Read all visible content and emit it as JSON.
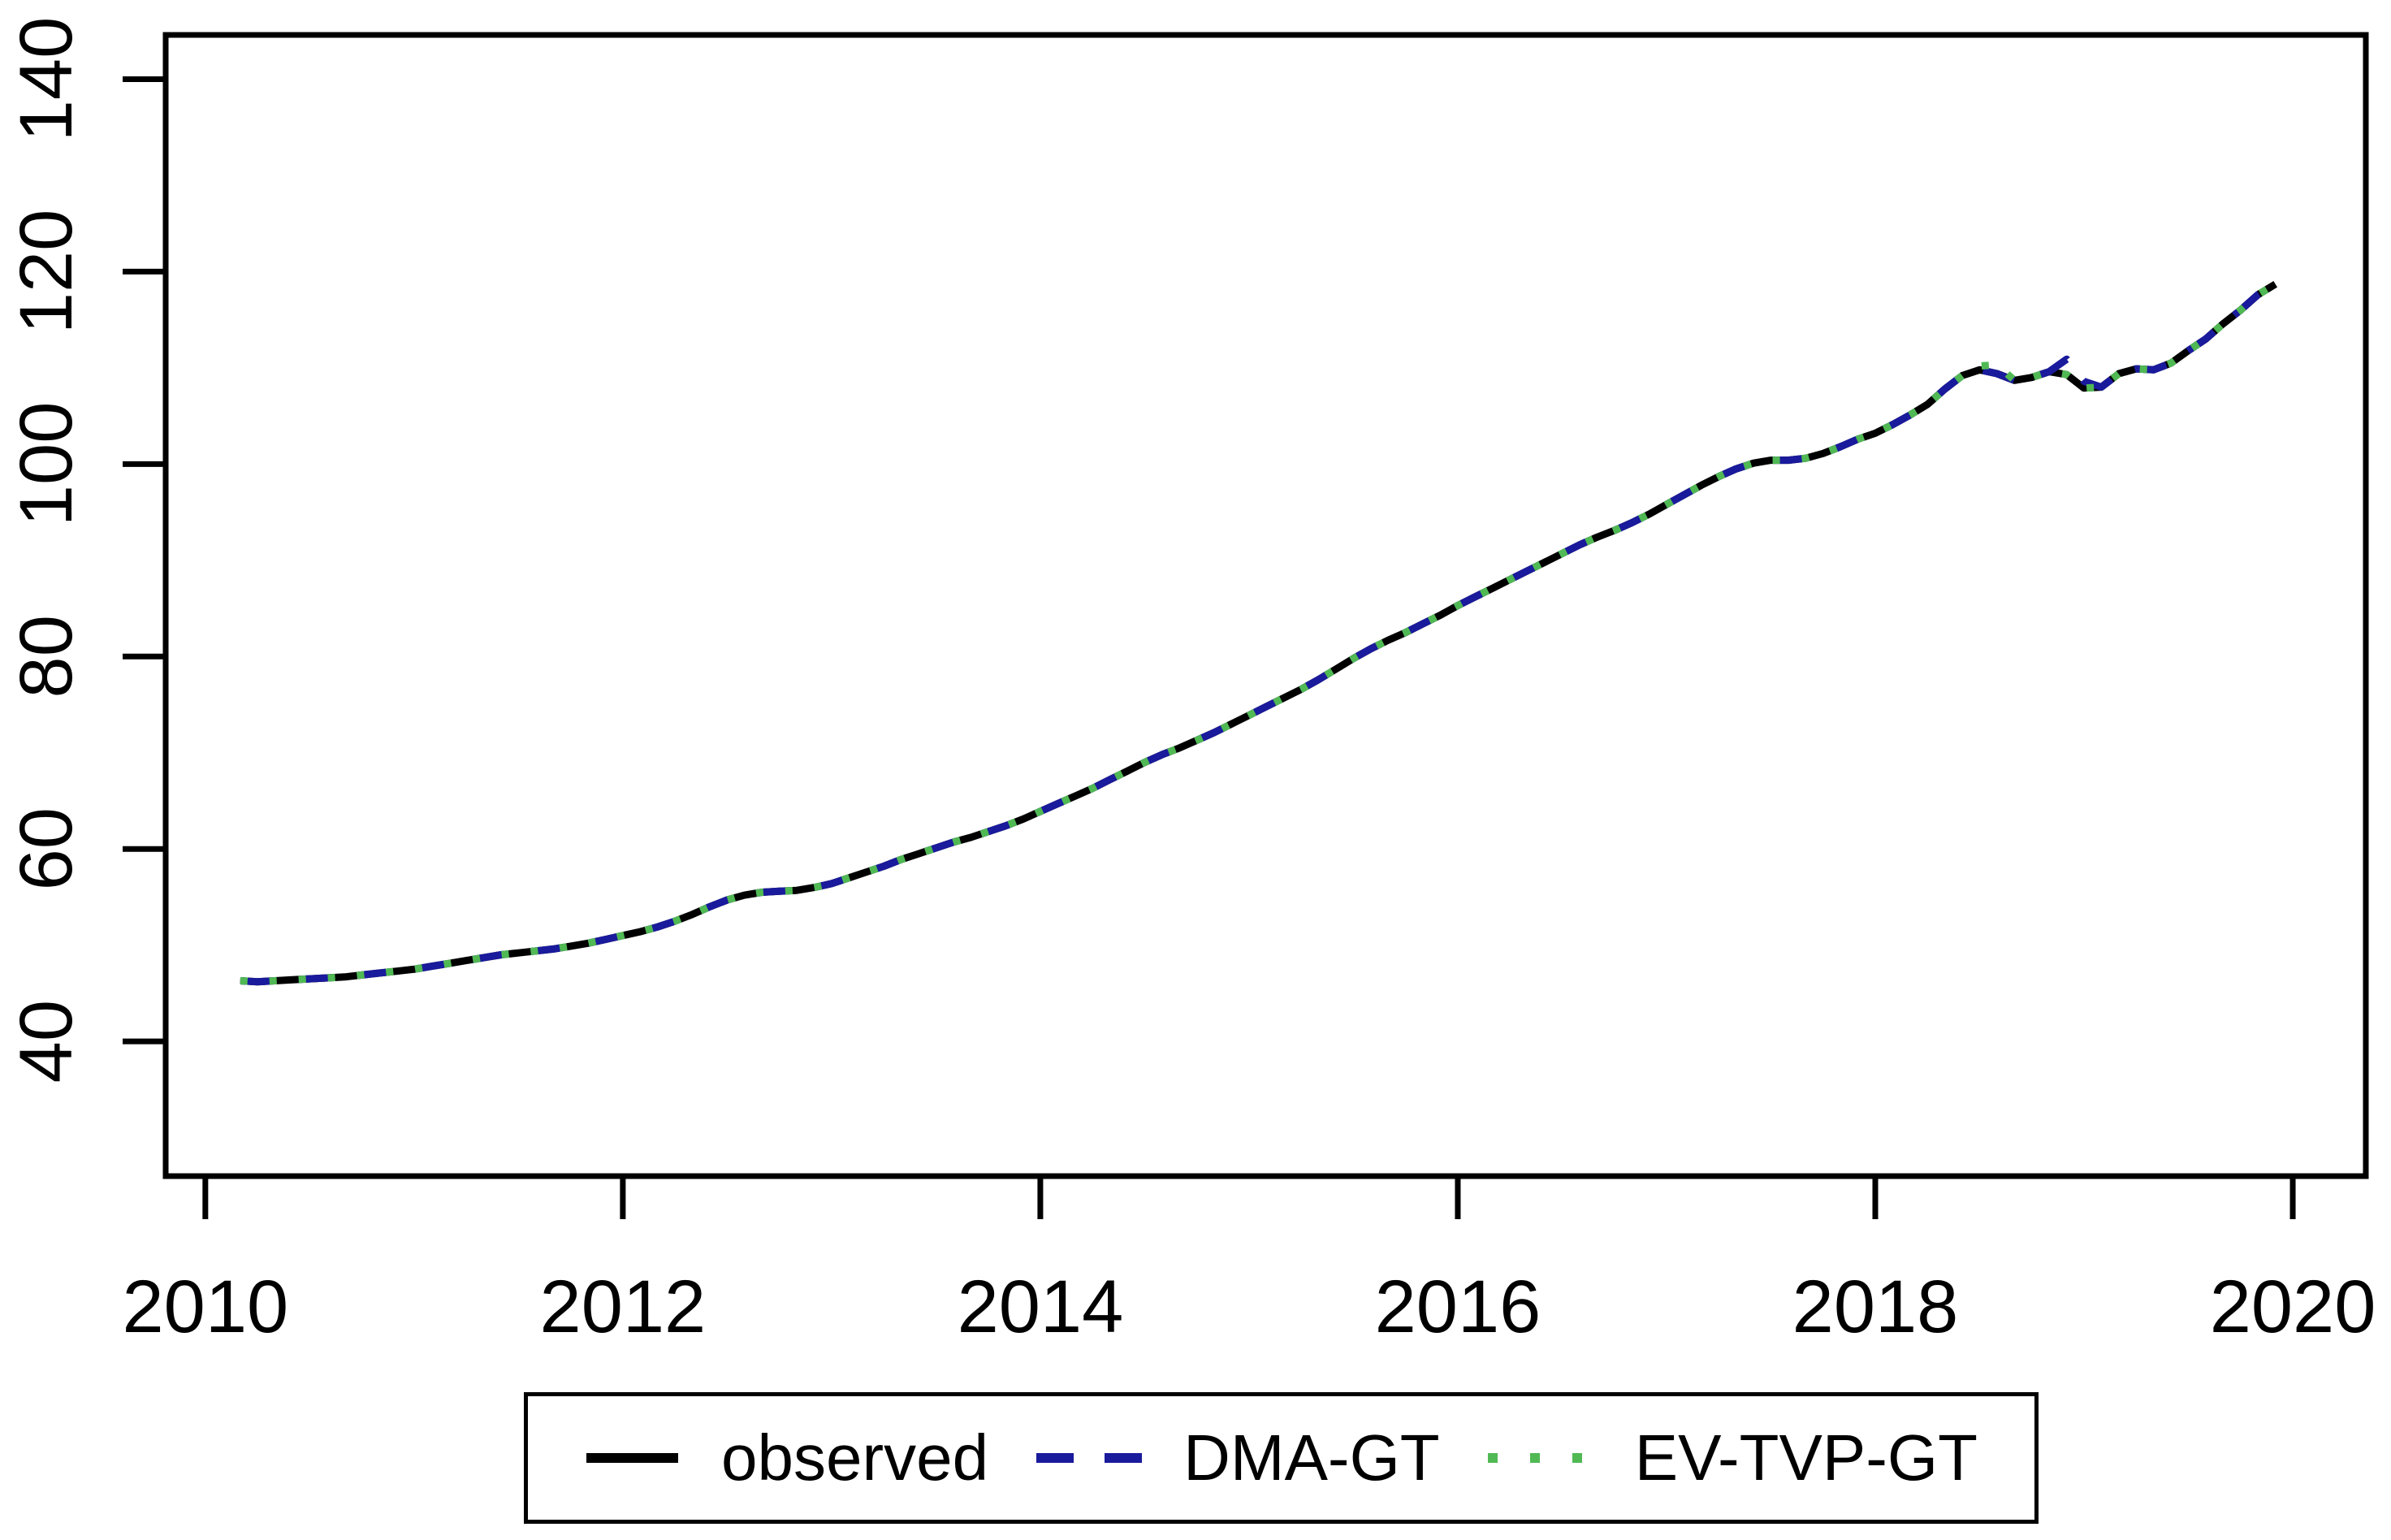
{
  "chart_data": {
    "type": "line",
    "title": "",
    "xlabel": "",
    "ylabel": "",
    "grid": false,
    "legend_position": "bottom",
    "x_ticks": [
      2010,
      2012,
      2014,
      2016,
      2018,
      2020
    ],
    "y_ticks": [
      40,
      60,
      80,
      100,
      120,
      140
    ],
    "xlim": [
      2009.81,
      2020.35
    ],
    "ylim": [
      26.0,
      144.6
    ],
    "x": [
      2010.167,
      2010.25,
      2010.333,
      2010.417,
      2010.5,
      2010.583,
      2010.667,
      2010.75,
      2010.833,
      2010.917,
      2011.0,
      2011.083,
      2011.167,
      2011.25,
      2011.333,
      2011.417,
      2011.5,
      2011.583,
      2011.667,
      2011.75,
      2011.833,
      2011.917,
      2012.0,
      2012.083,
      2012.167,
      2012.25,
      2012.333,
      2012.417,
      2012.5,
      2012.583,
      2012.667,
      2012.75,
      2012.833,
      2012.917,
      2013.0,
      2013.083,
      2013.167,
      2013.25,
      2013.333,
      2013.417,
      2013.5,
      2013.583,
      2013.667,
      2013.75,
      2013.833,
      2013.917,
      2014.0,
      2014.083,
      2014.167,
      2014.25,
      2014.333,
      2014.417,
      2014.5,
      2014.583,
      2014.667,
      2014.75,
      2014.833,
      2014.917,
      2015.0,
      2015.083,
      2015.167,
      2015.25,
      2015.333,
      2015.417,
      2015.5,
      2015.583,
      2015.667,
      2015.75,
      2015.833,
      2015.917,
      2016.0,
      2016.083,
      2016.167,
      2016.25,
      2016.333,
      2016.417,
      2016.5,
      2016.583,
      2016.667,
      2016.75,
      2016.833,
      2016.917,
      2017.0,
      2017.083,
      2017.167,
      2017.25,
      2017.333,
      2017.417,
      2017.5,
      2017.583,
      2017.667,
      2017.75,
      2017.833,
      2017.917,
      2018.0,
      2018.083,
      2018.167,
      2018.25,
      2018.333,
      2018.417,
      2018.5,
      2018.583,
      2018.667,
      2018.75,
      2018.833,
      2018.917,
      2019.0,
      2019.083,
      2019.167,
      2019.25,
      2019.333,
      2019.417,
      2019.5,
      2019.583,
      2019.667,
      2019.75,
      2019.833,
      2019.917
    ],
    "series": [
      {
        "name": "observed",
        "color": "#000000",
        "style": "solid",
        "values": [
          46.3,
          46.2,
          46.3,
          46.4,
          46.5,
          46.6,
          46.7,
          46.9,
          47.1,
          47.3,
          47.5,
          47.8,
          48.1,
          48.4,
          48.7,
          49.0,
          49.2,
          49.4,
          49.6,
          49.9,
          50.2,
          50.6,
          51.0,
          51.4,
          51.9,
          52.5,
          53.2,
          54.0,
          54.7,
          55.2,
          55.5,
          55.6,
          55.7,
          56.0,
          56.4,
          57.0,
          57.6,
          58.2,
          58.9,
          59.5,
          60.1,
          60.7,
          61.2,
          61.8,
          62.4,
          63.1,
          63.9,
          64.7,
          65.5,
          66.3,
          67.2,
          68.1,
          69.0,
          69.8,
          70.5,
          71.3,
          72.1,
          73.0,
          73.9,
          74.8,
          75.7,
          76.6,
          77.6,
          78.7,
          79.8,
          80.8,
          81.7,
          82.5,
          83.4,
          84.3,
          85.3,
          86.2,
          87.1,
          88.0,
          88.9,
          89.8,
          90.7,
          91.6,
          92.4,
          93.1,
          93.9,
          94.8,
          95.8,
          96.8,
          97.8,
          98.7,
          99.5,
          100.1,
          100.4,
          100.4,
          100.6,
          101.1,
          101.8,
          102.6,
          103.2,
          104.1,
          105.1,
          106.2,
          107.8,
          109.2,
          109.8,
          109.4,
          108.7,
          109.0,
          109.6,
          109.3,
          107.9,
          108.0,
          109.4,
          109.9,
          109.8,
          110.5,
          111.8,
          113.0,
          114.6,
          116.0,
          117.6,
          118.7
        ]
      },
      {
        "name": "DMA-GT",
        "color": "#1a1a9c",
        "style": "dashed",
        "values": [
          46.3,
          46.2,
          46.3,
          46.4,
          46.5,
          46.6,
          46.7,
          46.9,
          47.1,
          47.3,
          47.5,
          47.8,
          48.1,
          48.4,
          48.7,
          49.0,
          49.2,
          49.4,
          49.6,
          49.9,
          50.2,
          50.6,
          51.0,
          51.4,
          51.9,
          52.5,
          53.2,
          54.0,
          54.7,
          55.2,
          55.5,
          55.6,
          55.7,
          56.0,
          56.4,
          57.0,
          57.6,
          58.2,
          58.9,
          59.5,
          60.1,
          60.7,
          61.2,
          61.8,
          62.4,
          63.1,
          63.9,
          64.7,
          65.5,
          66.3,
          67.2,
          68.1,
          69.0,
          69.8,
          70.5,
          71.3,
          72.1,
          73.0,
          73.9,
          74.8,
          75.7,
          76.6,
          77.6,
          78.7,
          79.8,
          80.8,
          81.7,
          82.5,
          83.4,
          84.3,
          85.3,
          86.2,
          87.1,
          88.0,
          88.9,
          89.8,
          90.7,
          91.6,
          92.4,
          93.1,
          93.9,
          94.8,
          95.8,
          96.8,
          97.8,
          98.7,
          99.5,
          100.1,
          100.4,
          100.4,
          100.6,
          101.1,
          101.8,
          102.6,
          103.2,
          104.1,
          105.1,
          106.2,
          107.8,
          109.2,
          109.8,
          109.4,
          108.7,
          109.0,
          109.6,
          110.9,
          108.6,
          108.0,
          109.4,
          109.9,
          109.8,
          110.5,
          111.8,
          113.0,
          114.6,
          116.0,
          117.6,
          118.7
        ]
      },
      {
        "name": "EV-TVP-GT",
        "color": "#50b954",
        "style": "dotted",
        "values": [
          46.3,
          46.2,
          46.3,
          46.4,
          46.5,
          46.6,
          46.7,
          46.9,
          47.1,
          47.3,
          47.5,
          47.8,
          48.1,
          48.4,
          48.7,
          49.0,
          49.2,
          49.4,
          49.6,
          49.9,
          50.2,
          50.6,
          51.0,
          51.4,
          51.9,
          52.5,
          53.2,
          54.0,
          54.7,
          55.2,
          55.5,
          55.6,
          55.7,
          56.0,
          56.4,
          57.0,
          57.6,
          58.2,
          58.9,
          59.5,
          60.1,
          60.7,
          61.2,
          61.8,
          62.4,
          63.1,
          63.9,
          64.7,
          65.5,
          66.3,
          67.2,
          68.1,
          69.0,
          69.8,
          70.5,
          71.3,
          72.1,
          73.0,
          73.9,
          74.8,
          75.7,
          76.6,
          77.6,
          78.7,
          79.8,
          80.8,
          81.7,
          82.5,
          83.4,
          84.3,
          85.3,
          86.2,
          87.1,
          88.0,
          88.9,
          89.8,
          90.7,
          91.6,
          92.4,
          93.1,
          93.9,
          94.8,
          95.8,
          96.8,
          97.8,
          98.7,
          99.5,
          100.1,
          100.4,
          100.4,
          100.6,
          101.1,
          101.8,
          102.6,
          103.2,
          104.1,
          105.1,
          106.2,
          107.8,
          109.2,
          110.2,
          110.3,
          108.7,
          109.0,
          109.6,
          109.3,
          107.9,
          108.0,
          109.4,
          109.9,
          109.8,
          110.5,
          111.8,
          113.0,
          114.6,
          116.0,
          117.6,
          118.7
        ]
      }
    ]
  }
}
